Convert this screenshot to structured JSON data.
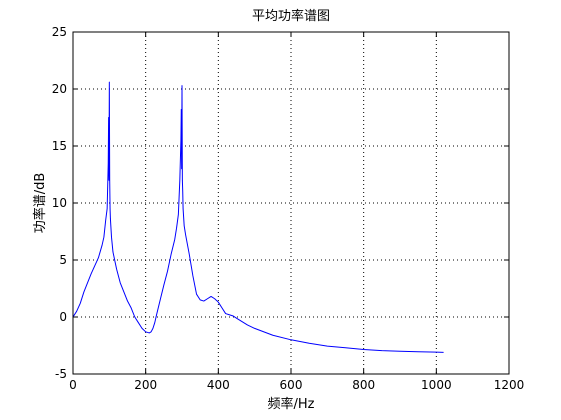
{
  "chart_data": {
    "type": "line",
    "title": "平均功率谱图",
    "xlabel": "频率/Hz",
    "ylabel": "功率谱/dB",
    "xlim": [
      0,
      1200
    ],
    "ylim": [
      -5,
      25
    ],
    "xticks": [
      0,
      200,
      400,
      600,
      800,
      1000,
      1200
    ],
    "yticks": [
      -5,
      0,
      5,
      10,
      15,
      20,
      25
    ],
    "grid": true,
    "line_color": "#0000ff",
    "series": [
      {
        "x": [
          0,
          10,
          20,
          30,
          40,
          50,
          60,
          70,
          80,
          85,
          90,
          94,
          97,
          98,
          99,
          100,
          101,
          102,
          103,
          106,
          110,
          120,
          130,
          140,
          150,
          160,
          170,
          180,
          190,
          200,
          210,
          215,
          220,
          225,
          230,
          240,
          250,
          260,
          270,
          280,
          285,
          290,
          294,
          297,
          298,
          299,
          300,
          301,
          302,
          303,
          306,
          310,
          320,
          330,
          340,
          350,
          360,
          370,
          380,
          390,
          400,
          410,
          420,
          430,
          440,
          450,
          460,
          480,
          500,
          550,
          600,
          650,
          700,
          750,
          800,
          850,
          900,
          950,
          1000,
          1020
        ],
        "y": [
          0.0,
          0.5,
          1.2,
          2.2,
          3.0,
          3.8,
          4.5,
          5.2,
          6.3,
          7.0,
          8.5,
          9.5,
          13.5,
          17.5,
          12.0,
          20.6,
          12.0,
          9.5,
          8.6,
          7.0,
          5.7,
          4.2,
          3.0,
          2.2,
          1.4,
          0.8,
          0.0,
          -0.5,
          -1.0,
          -1.3,
          -1.4,
          -1.3,
          -1.0,
          -0.5,
          0.2,
          1.5,
          2.8,
          4.0,
          5.5,
          6.8,
          7.8,
          9.0,
          12.0,
          15.5,
          18.2,
          13.0,
          20.3,
          12.0,
          11.0,
          9.5,
          8.0,
          7.2,
          5.5,
          3.6,
          2.0,
          1.5,
          1.4,
          1.6,
          1.8,
          1.6,
          1.3,
          0.8,
          0.3,
          0.2,
          0.1,
          -0.1,
          -0.3,
          -0.7,
          -1.0,
          -1.6,
          -2.0,
          -2.3,
          -2.55,
          -2.7,
          -2.85,
          -2.95,
          -3.0,
          -3.05,
          -3.08,
          -3.1
        ]
      }
    ]
  }
}
